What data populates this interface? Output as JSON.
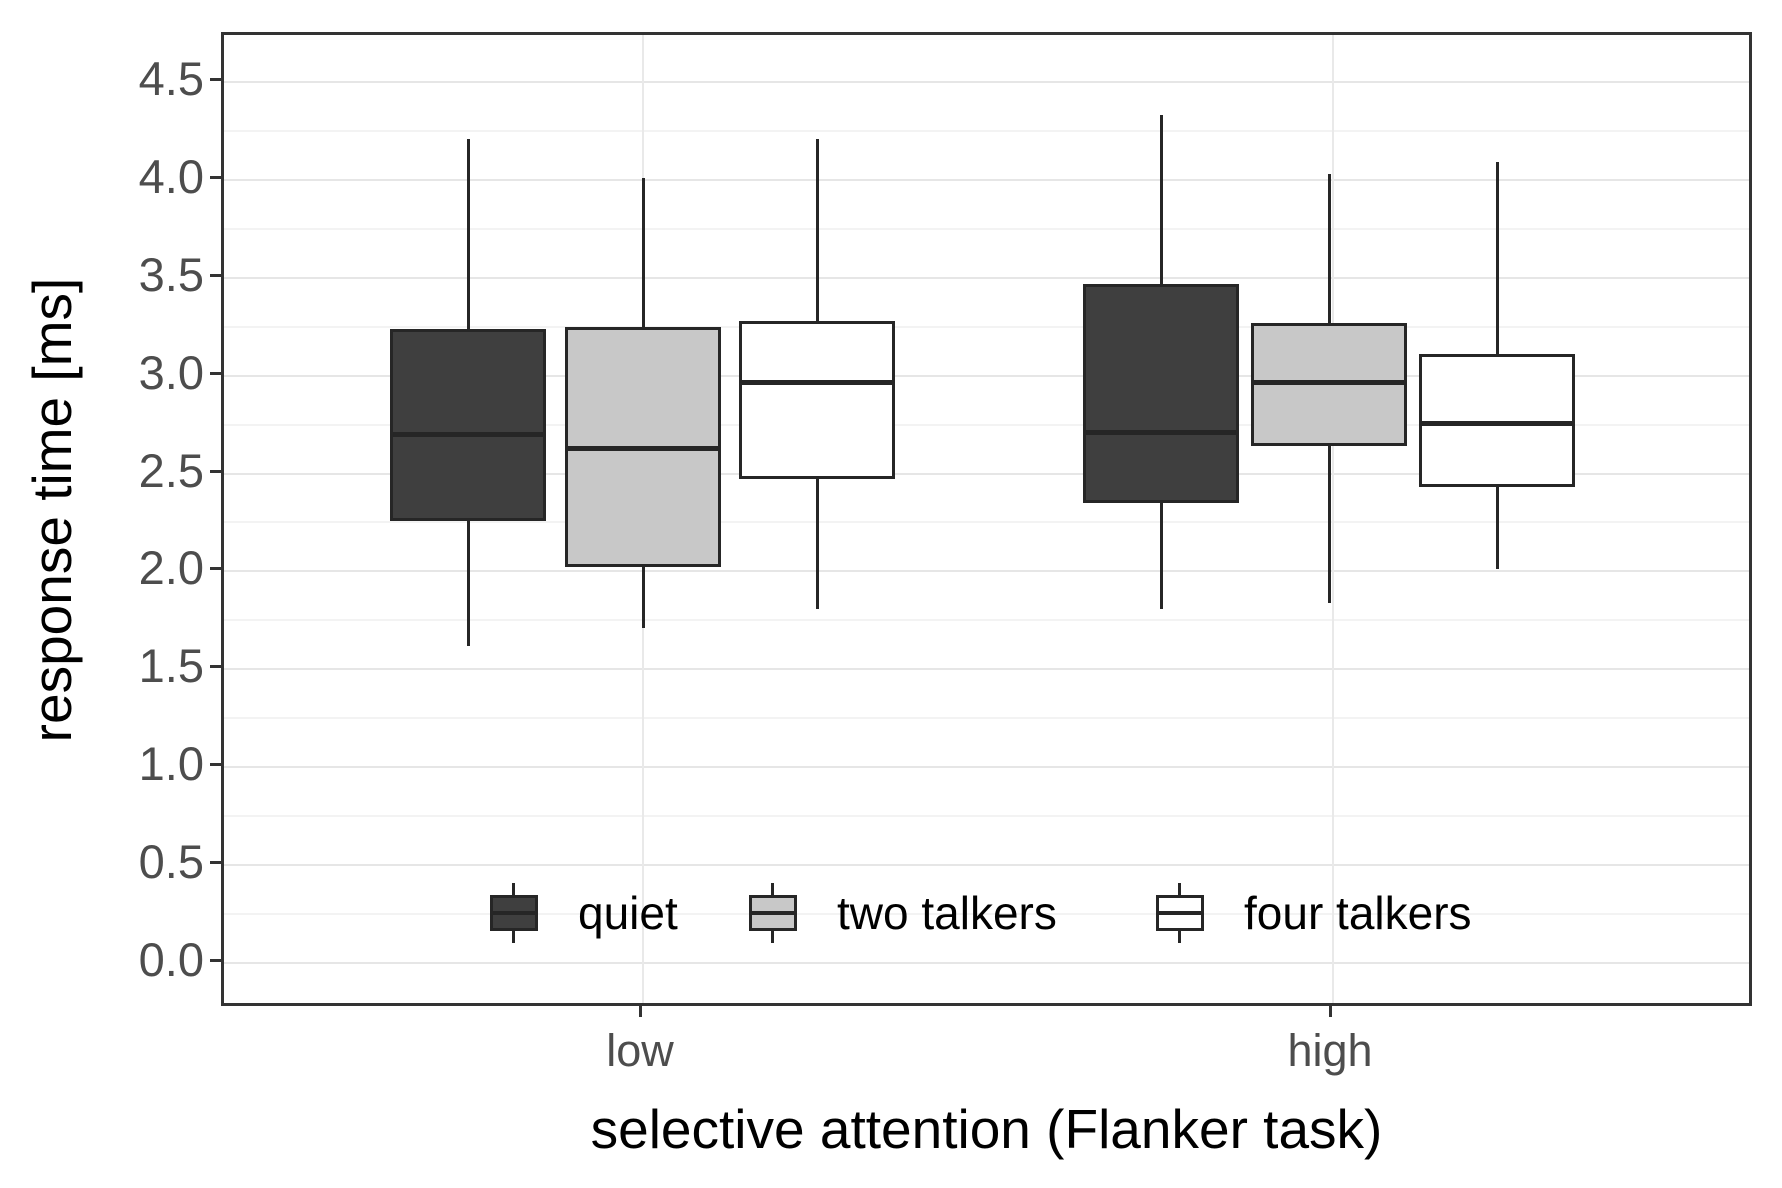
{
  "axes": {
    "y": {
      "title": "response time [ms]",
      "ticks": [
        {
          "label": "4.5",
          "value": 4.5
        },
        {
          "label": "4.0",
          "value": 4.0
        },
        {
          "label": "3.5",
          "value": 3.5
        },
        {
          "label": "3.0",
          "value": 3.0
        },
        {
          "label": "2.5",
          "value": 2.5
        },
        {
          "label": "2.0",
          "value": 2.0
        },
        {
          "label": "1.5",
          "value": 1.5
        },
        {
          "label": "1.0",
          "value": 1.0
        },
        {
          "label": "0.5",
          "value": 0.5
        },
        {
          "label": "0.0",
          "value": 0.0
        }
      ],
      "minor_gridlines": [
        4.25,
        3.75,
        3.25,
        2.75,
        2.25,
        1.75,
        1.25,
        0.75,
        0.25
      ]
    },
    "x": {
      "title": "selective attention (Flanker task)",
      "categories": [
        {
          "label": "low"
        },
        {
          "label": "high"
        }
      ]
    }
  },
  "legend": [
    {
      "label": "quiet",
      "fill": "#3f3f3f"
    },
    {
      "label": "two talkers",
      "fill": "#c8c8c8"
    },
    {
      "label": "four talkers",
      "fill": "#ffffff"
    }
  ],
  "colors": {
    "box_stroke": "#262626",
    "panel_border": "#333333",
    "grid_major": "#e6e6e6",
    "grid_minor": "#f3f3f3",
    "tick_text": "#4d4d4d",
    "title_text": "#000000",
    "fill_quiet": "#3f3f3f",
    "fill_two_talkers": "#c8c8c8",
    "fill_four_talkers": "#ffffff"
  },
  "chart_data": {
    "type": "boxplot",
    "title": "",
    "xlabel": "selective attention (Flanker task)",
    "ylabel": "response time [ms]",
    "ylim": [
      0,
      4.5
    ],
    "ytick_step": 0.5,
    "grid": true,
    "legend_position": "inside bottom-center",
    "categories": [
      "low",
      "high"
    ],
    "series": [
      {
        "name": "quiet",
        "fill": "#3f3f3f",
        "boxes": [
          {
            "group": "low",
            "whislo": 1.62,
            "q1": 2.26,
            "med": 2.7,
            "q3": 3.24,
            "whishi": 4.21
          },
          {
            "group": "high",
            "whislo": 1.81,
            "q1": 2.35,
            "med": 2.71,
            "q3": 3.47,
            "whishi": 4.33
          }
        ]
      },
      {
        "name": "two talkers",
        "fill": "#c8c8c8",
        "boxes": [
          {
            "group": "low",
            "whislo": 1.71,
            "q1": 2.02,
            "med": 2.63,
            "q3": 3.25,
            "whishi": 4.01
          },
          {
            "group": "high",
            "whislo": 1.84,
            "q1": 2.64,
            "med": 2.97,
            "q3": 3.27,
            "whishi": 4.03
          }
        ]
      },
      {
        "name": "four talkers",
        "fill": "#ffffff",
        "boxes": [
          {
            "group": "low",
            "whislo": 1.81,
            "q1": 2.47,
            "med": 2.97,
            "q3": 3.28,
            "whishi": 4.21
          },
          {
            "group": "high",
            "whislo": 2.01,
            "q1": 2.43,
            "med": 2.76,
            "q3": 3.11,
            "whishi": 4.09
          }
        ]
      }
    ]
  }
}
